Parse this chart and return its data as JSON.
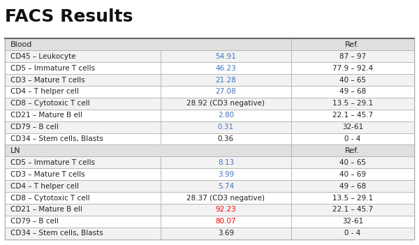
{
  "title": "FACS Results",
  "title_fontsize": 18,
  "title_fontweight": "bold",
  "background_color": "#ffffff",
  "row_bg_even": "#f2f2f2",
  "row_bg_odd": "#ffffff",
  "section_bg": "#e0e0e0",
  "text_color_normal": "#222222",
  "text_color_blue": "#4472c4",
  "text_color_red": "#ff0000",
  "blood_rows": [
    {
      "label": "CD45 – Leukocyte",
      "value": "54.91",
      "ref": "87 – 97",
      "value_color": "blue"
    },
    {
      "label": "CD5 – Immature T cells",
      "value": "46.23",
      "ref": "77.9 – 92.4",
      "value_color": "blue"
    },
    {
      "label": "CD3 – Mature T cells",
      "value": "21.28",
      "ref": "40 – 65",
      "value_color": "blue"
    },
    {
      "label": "CD4 – T helper cell",
      "value": "27.08",
      "ref": "49 – 68",
      "value_color": "blue"
    },
    {
      "label": "CD8 – Cytotoxic T cell",
      "value": "28.92 (CD3 negative)",
      "ref": "13.5 – 29.1",
      "value_color": "normal"
    },
    {
      "label": "CD21 – Mature B ell",
      "value": "2.80",
      "ref": "22.1 – 45.7",
      "value_color": "blue"
    },
    {
      "label": "CD79 – B cell",
      "value": "0.31",
      "ref": "32-61",
      "value_color": "blue"
    },
    {
      "label": "CD34 – Stem cells, Blasts",
      "value": "0.36",
      "ref": "0 - 4",
      "value_color": "normal"
    }
  ],
  "ln_rows": [
    {
      "label": "CD5 – Immature T cells",
      "value": "8.13",
      "ref": "40 – 65",
      "value_color": "blue"
    },
    {
      "label": "CD3 – Mature T cells",
      "value": "3.99",
      "ref": "40 – 69",
      "value_color": "blue"
    },
    {
      "label": "CD4 – T helper cell",
      "value": "5.74",
      "ref": "49 – 68",
      "value_color": "blue"
    },
    {
      "label": "CD8 – Cytotoxic T cell",
      "value": "28.37 (CD3 negative)",
      "ref": "13.5 – 29.1",
      "value_color": "normal"
    },
    {
      "label": "CD21 – Mature B ell",
      "value": "92.23",
      "ref": "22.1 – 45.7",
      "value_color": "red"
    },
    {
      "label": "CD79 – B cell",
      "value": "80.07",
      "ref": "32-61",
      "value_color": "red"
    },
    {
      "label": "CD34 – Stem cells, Blasts",
      "value": "3.69",
      "ref": "0 - 4",
      "value_color": "normal"
    }
  ]
}
